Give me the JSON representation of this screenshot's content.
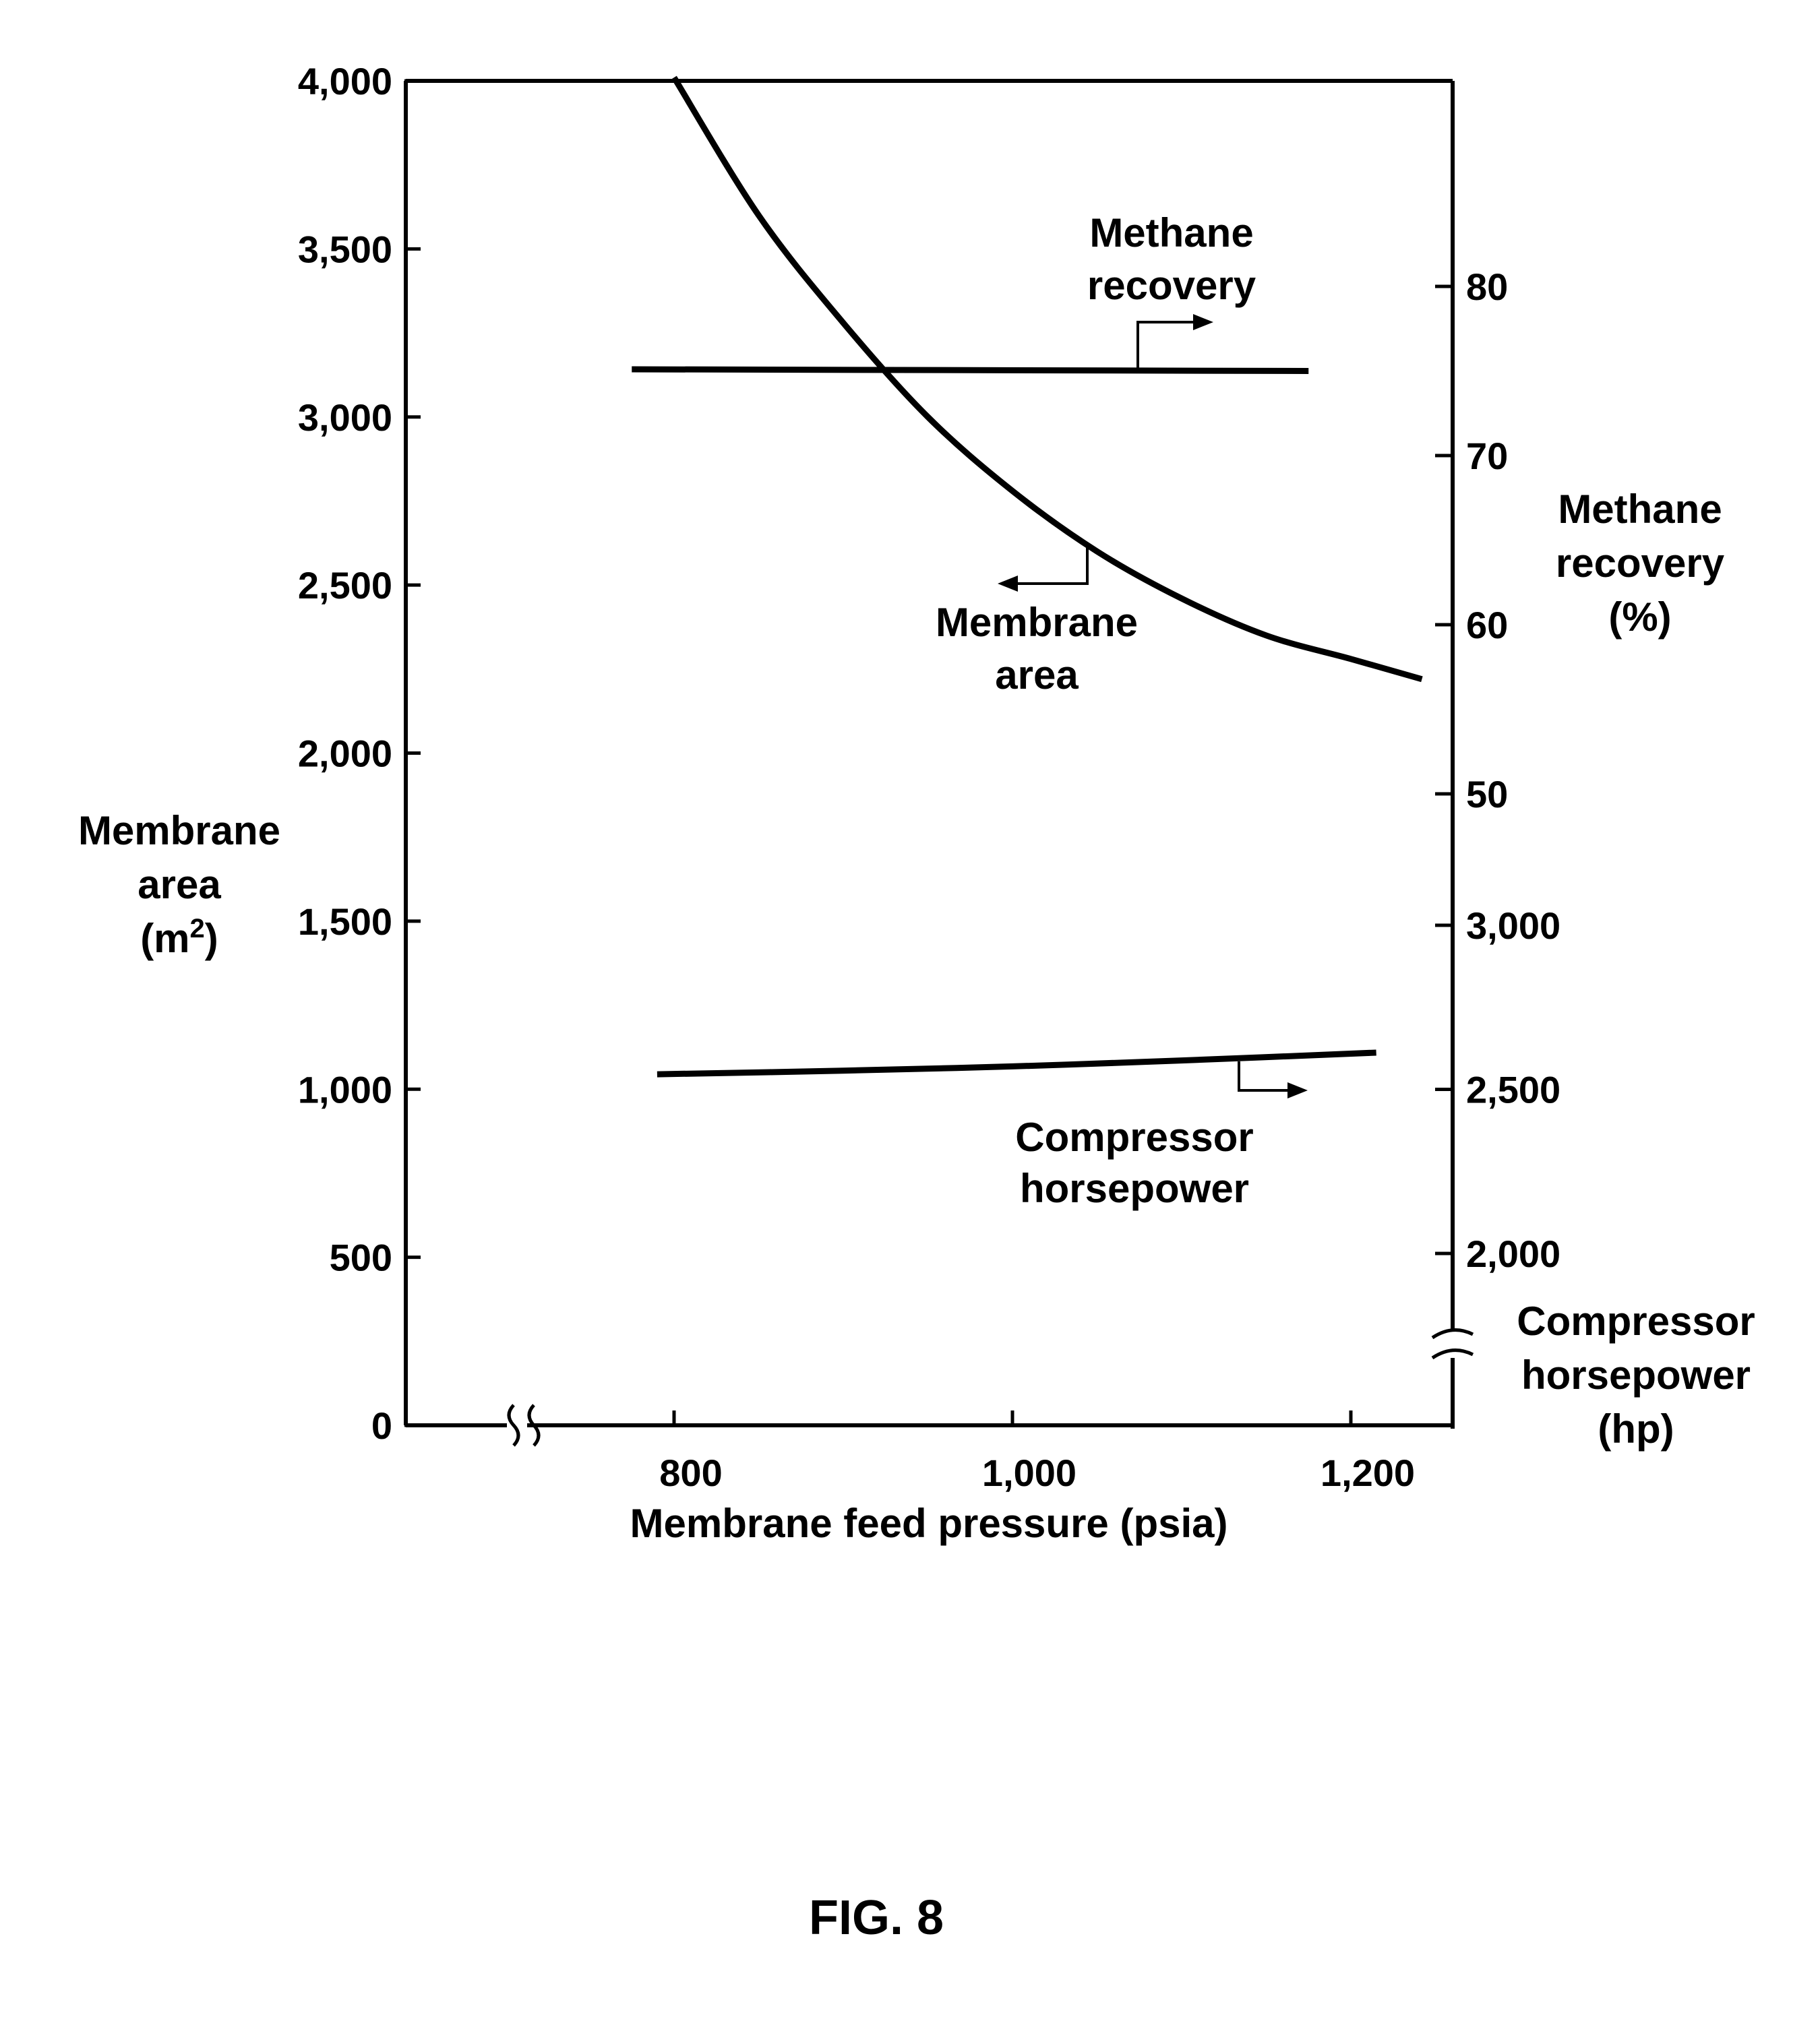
{
  "chart_data": {
    "type": "line",
    "figure_label": "FIG. 8",
    "x_axis": {
      "label": "Membrane feed pressure (psia)",
      "ticks": [
        800,
        1000,
        1200
      ],
      "tick_labels": [
        "800",
        "1,000",
        "1,200"
      ],
      "range": [
        640,
        1260
      ],
      "axis_break": true
    },
    "y_left": {
      "label_lines": [
        "Membrane",
        "area",
        "(m",
        ")"
      ],
      "label_superscript": "2",
      "range": [
        0,
        4000
      ],
      "ticks": [
        0,
        500,
        1000,
        1500,
        2000,
        2500,
        3000,
        3500,
        4000
      ],
      "tick_labels": [
        "0",
        "500",
        "1,000",
        "1,500",
        "2,000",
        "2,500",
        "3,000",
        "3,500",
        "4,000"
      ]
    },
    "y_right_recovery": {
      "label_lines": [
        "Methane",
        "recovery",
        "(%)"
      ],
      "ticks": [
        50,
        60,
        70,
        80
      ],
      "tick_labels": [
        "50",
        "60",
        "70",
        "80"
      ]
    },
    "y_right_horsepower": {
      "label_lines": [
        "Compressor",
        "horsepower",
        "(hp)"
      ],
      "ticks": [
        2000,
        2500,
        3000
      ],
      "tick_labels": [
        "2,000",
        "2,500",
        "3,000"
      ],
      "axis_break": true
    },
    "series": [
      {
        "axis": "left",
        "annotation_lines": [
          "Membrane",
          "area"
        ],
        "x": [
          800,
          850,
          900,
          950,
          1000,
          1050,
          1100,
          1150,
          1200,
          1242
        ],
        "y": [
          4010,
          3600,
          3280,
          3000,
          2780,
          2600,
          2460,
          2350,
          2280,
          2220
        ]
      },
      {
        "axis": "right_recovery",
        "annotation_lines": [
          "Methane",
          "recovery"
        ],
        "x": [
          775,
          1175
        ],
        "y": [
          75.1,
          75.0
        ]
      },
      {
        "axis": "right_horsepower",
        "annotation_lines": [
          "Compressor",
          "horsepower"
        ],
        "x": [
          790,
          900,
          1000,
          1100,
          1215
        ],
        "y": [
          2546,
          2557,
          2570,
          2588,
          2612
        ]
      }
    ]
  }
}
